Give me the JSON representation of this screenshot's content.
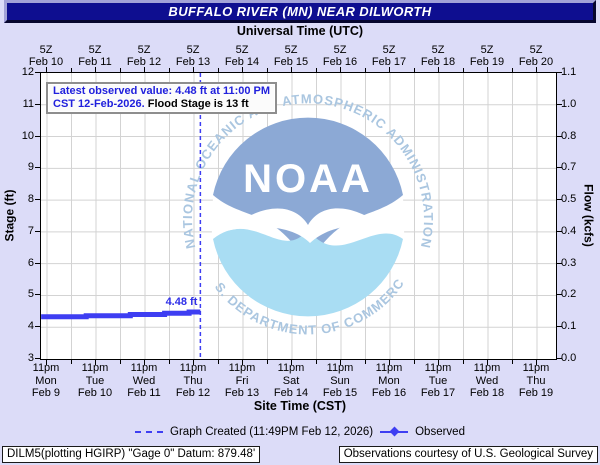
{
  "title_bar": "BUFFALO RIVER (MN) NEAR DILWORTH",
  "annotation": {
    "line1": "Latest observed value: 4.48 ft at 11:00 PM",
    "line2_blue": "CST 12-Feb-2026.",
    "line2_black": " Flood Stage is 13 ft"
  },
  "legend": {
    "created": "Graph Created (11:49PM Feb 12, 2026)",
    "observed": "Observed"
  },
  "footer": {
    "left": "DILM5(plotting HGIRP) \"Gage 0\" Datum: 879.48'",
    "right": "Observations courtesy of U.S. Geological Survey"
  },
  "watermark": {
    "acronym": "NOAA",
    "top_text": "NATIONAL OCEANIC AND ATMOSPHERIC ADMINISTRATION",
    "bottom_text": "U.S. DEPARTMENT OF COMMERCE"
  },
  "colors": {
    "page_bg": "#dcdcf8",
    "title_bg": "#0e0e90",
    "title_fg": "#ffffff",
    "observed_blue": "#3e3ef2",
    "annotation_blue": "#2020dd",
    "grid_gray": "#d3d3d3",
    "plot_bg": "#ffffff",
    "logo_dark_blue": "#8ca9d5",
    "logo_light_blue": "#a9ddf3",
    "logo_ring_text": "#aac6e0"
  },
  "chart_data": {
    "type": "line",
    "title": "BUFFALO RIVER (MN) NEAR DILWORTH",
    "top_axis_label": "Universal Time (UTC)",
    "bottom_axis_label": "Site Time (CST)",
    "left_axis_label": "Stage (ft)",
    "right_axis_label": "Flow (kcfs)",
    "ylim_stage": [
      3,
      12
    ],
    "stage_ticks": [
      12,
      11,
      10,
      9,
      8,
      7,
      6,
      5,
      4,
      3
    ],
    "flow_ticks": [
      "1.1",
      "1.0",
      "0.8",
      "0.7",
      "0.5",
      "0.4",
      "0.3",
      "0.2",
      "0.1",
      "0.0"
    ],
    "utc_ticks": [
      {
        "hour": "5Z",
        "date": "Feb 10"
      },
      {
        "hour": "5Z",
        "date": "Feb 11"
      },
      {
        "hour": "5Z",
        "date": "Feb 12"
      },
      {
        "hour": "5Z",
        "date": "Feb 13"
      },
      {
        "hour": "5Z",
        "date": "Feb 14"
      },
      {
        "hour": "5Z",
        "date": "Feb 15"
      },
      {
        "hour": "5Z",
        "date": "Feb 16"
      },
      {
        "hour": "5Z",
        "date": "Feb 17"
      },
      {
        "hour": "5Z",
        "date": "Feb 18"
      },
      {
        "hour": "5Z",
        "date": "Feb 19"
      },
      {
        "hour": "5Z",
        "date": "Feb 20"
      }
    ],
    "cst_ticks": [
      {
        "time": "11pm",
        "day": "Mon",
        "date": "Feb 9"
      },
      {
        "time": "11pm",
        "day": "Tue",
        "date": "Feb 10"
      },
      {
        "time": "11pm",
        "day": "Wed",
        "date": "Feb 11"
      },
      {
        "time": "11pm",
        "day": "Thu",
        "date": "Feb 12"
      },
      {
        "time": "11pm",
        "day": "Fri",
        "date": "Feb 13"
      },
      {
        "time": "11pm",
        "day": "Sat",
        "date": "Feb 14"
      },
      {
        "time": "11pm",
        "day": "Sun",
        "date": "Feb 15"
      },
      {
        "time": "11pm",
        "day": "Mon",
        "date": "Feb 16"
      },
      {
        "time": "11pm",
        "day": "Tue",
        "date": "Feb 17"
      },
      {
        "time": "11pm",
        "day": "Wed",
        "date": "Feb 18"
      },
      {
        "time": "11pm",
        "day": "Thu",
        "date": "Feb 19"
      }
    ],
    "flood_stage_ft": 13,
    "observed_series": {
      "name": "Observed",
      "interpolation": "step-after",
      "x_reference": "days after 11pm CST Feb 9",
      "points": [
        {
          "x_days": -0.12,
          "stage_ft": 4.33
        },
        {
          "x_days": 0.8,
          "stage_ft": 4.36
        },
        {
          "x_days": 1.7,
          "stage_ft": 4.4
        },
        {
          "x_days": 2.4,
          "stage_ft": 4.44
        },
        {
          "x_days": 2.9,
          "stage_ft": 4.48
        },
        {
          "x_days": 3.13,
          "stage_ft": 4.48
        }
      ]
    },
    "graph_created_x_days": 3.13,
    "latest_observed": {
      "value_ft": 4.48,
      "label": "4.48 ft",
      "time": "11:00 PM CST 12-Feb-2026"
    }
  }
}
